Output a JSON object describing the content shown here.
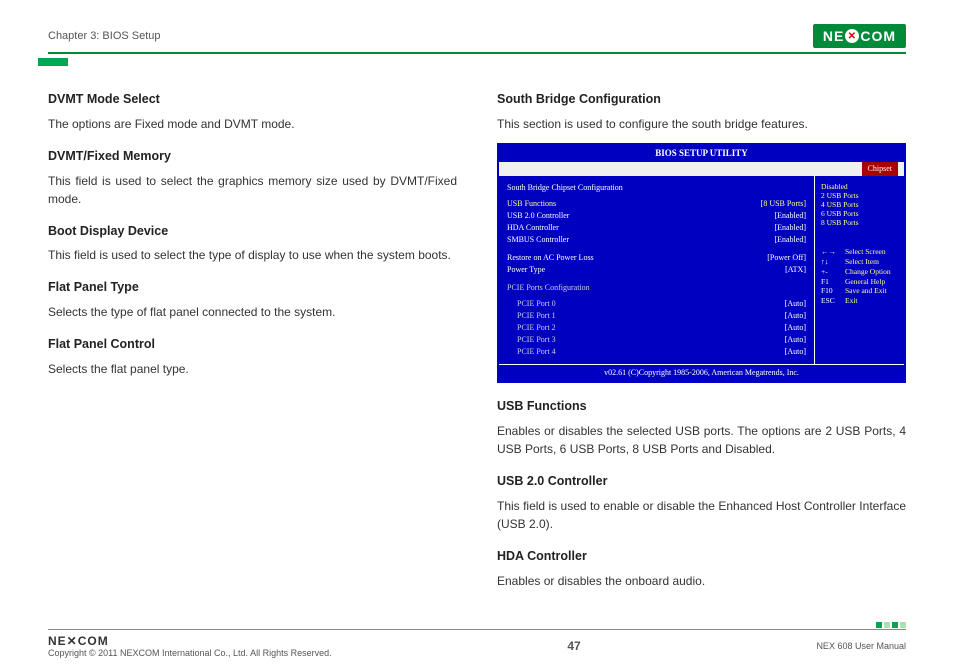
{
  "header": {
    "chapter": "Chapter 3: BIOS Setup",
    "logo_pre": "NE",
    "logo_x": "✕",
    "logo_post": "COM"
  },
  "left_col": {
    "h1": "DVMT Mode Select",
    "p1": "The options are Fixed mode and DVMT mode.",
    "h2": "DVMT/Fixed Memory",
    "p2": "This field is used to select the graphics memory size used by DVMT/Fixed mode.",
    "h3": "Boot Display Device",
    "p3": "This field is used to select the type of display to use when the system boots.",
    "h4": "Flat Panel Type",
    "p4": "Selects the type of flat panel connected to the system.",
    "h5": "Flat Panel Control",
    "p5": "Selects the flat panel type."
  },
  "right_col": {
    "h1": "South Bridge Configuration",
    "p1": "This section is used to configure the south bridge features.",
    "h2": "USB Functions",
    "p2": "Enables or disables the selected USB ports. The options are 2 USB Ports, 4 USB Ports, 6 USB Ports, 8 USB Ports and Disabled.",
    "h3": "USB 2.0 Controller",
    "p3": "This field is used to enable or disable the Enhanced Host Controller Interface (USB 2.0).",
    "h4": "HDA Controller",
    "p4": "Enables or disables the onboard audio."
  },
  "bios": {
    "title": "BIOS SETUP UTILITY",
    "tab": "Chipset",
    "section": "South Bridge Chipset Configuration",
    "rows": [
      {
        "lbl": "USB Functions",
        "val": "[8 USB Ports]",
        "sel": true
      },
      {
        "lbl": "USB 2.0 Controller",
        "val": "[Enabled]"
      },
      {
        "lbl": "HDA Controller",
        "val": "[Enabled]"
      },
      {
        "lbl": "SMBUS Controller",
        "val": "[Enabled]"
      }
    ],
    "rows2": [
      {
        "lbl": "Restore on AC Power Loss",
        "val": "[Power Off]"
      },
      {
        "lbl": "Power Type",
        "val": "[ATX]"
      }
    ],
    "pcie_header": "PCIE Ports Configuration",
    "pcie": [
      {
        "lbl": "PCIE Port 0",
        "val": "[Auto]"
      },
      {
        "lbl": "PCIE Port 1",
        "val": "[Auto]"
      },
      {
        "lbl": "PCIE Port 2",
        "val": "[Auto]"
      },
      {
        "lbl": "PCIE Port 3",
        "val": "[Auto]"
      },
      {
        "lbl": "PCIE Port 4",
        "val": "[Auto]"
      }
    ],
    "options": [
      "Disabled",
      "2 USB Ports",
      "4 USB Ports",
      "6 USB Ports",
      "8 USB Ports"
    ],
    "nav": [
      {
        "k": "←→",
        "d": "Select Screen"
      },
      {
        "k": "↑↓",
        "d": "Select Item"
      },
      {
        "k": "+-",
        "d": "Change Option"
      },
      {
        "k": "F1",
        "d": "General Help"
      },
      {
        "k": "F10",
        "d": "Save and Exit"
      },
      {
        "k": "ESC",
        "d": "Exit"
      }
    ],
    "footer": "v02.61 (C)Copyright 1985-2006, American Megatrends, Inc."
  },
  "footer": {
    "logo": "NE✕COM",
    "copyright": "Copyright © 2011 NEXCOM International Co., Ltd. All Rights Reserved.",
    "page": "47",
    "manual": "NEX 608 User Manual"
  }
}
